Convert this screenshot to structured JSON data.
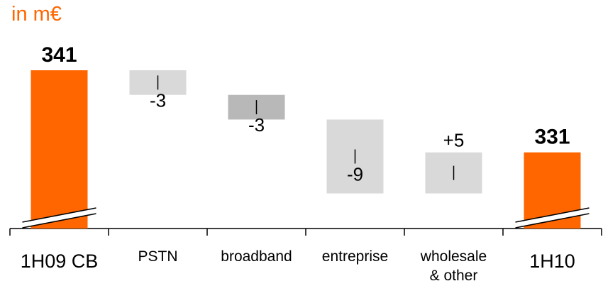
{
  "chart_data": {
    "type": "waterfall",
    "unit_label": "in m€",
    "categories": [
      "1H09 CB",
      "PSTN",
      "broadband",
      "entreprise",
      "wholesale\n& other",
      "1H10"
    ],
    "steps": [
      {
        "category": "1H09 CB",
        "kind": "total",
        "value": 341,
        "label": "341"
      },
      {
        "category": "PSTN",
        "kind": "delta",
        "value": -3,
        "label": "-3"
      },
      {
        "category": "broadband",
        "kind": "delta",
        "value": -3,
        "label": "-3"
      },
      {
        "category": "entreprise",
        "kind": "delta",
        "value": -9,
        "label": "-9"
      },
      {
        "category": "wholesale & other",
        "kind": "delta",
        "value": 5,
        "label": "+5"
      },
      {
        "category": "1H10",
        "kind": "total",
        "value": 331,
        "label": "331"
      }
    ],
    "axis_break": true,
    "colors": {
      "total": "#ff6600",
      "delta": "#d9d9d9",
      "delta_highlight": "#b8b8b8",
      "text": "#000000",
      "unit": "#ff6600"
    }
  }
}
